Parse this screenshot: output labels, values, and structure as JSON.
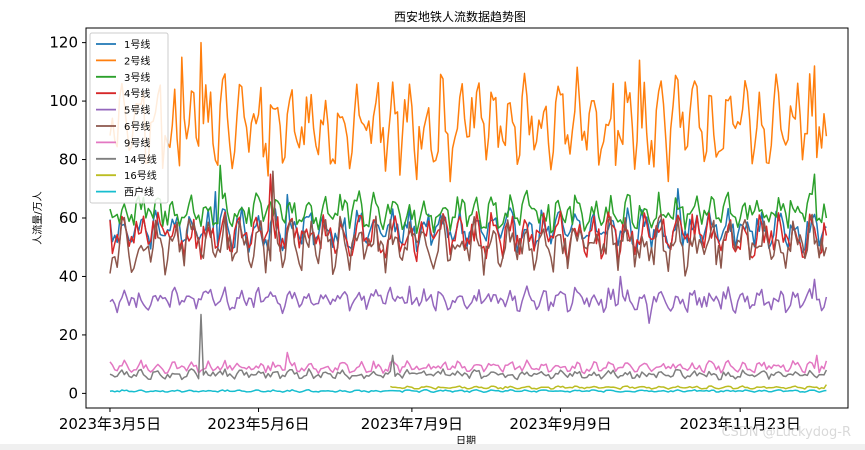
{
  "chart_data": {
    "type": "line",
    "title": "西安地铁人流数据趋势图",
    "xlabel": "日期",
    "ylabel": "人流量/万人",
    "x_start": "2023-03-05",
    "x_end": "2023-12-29",
    "xlim": [
      "2023-02-23",
      "2024-01-07"
    ],
    "ylim": [
      -5,
      125
    ],
    "yticks": [
      0,
      20,
      40,
      60,
      80,
      100,
      120
    ],
    "xticks": [
      {
        "date": "2023-03-05",
        "label": "2023年3月5日"
      },
      {
        "date": "2023-05-06",
        "label": "2023年5月6日"
      },
      {
        "date": "2023-07-09",
        "label": "2023年7月9日"
      },
      {
        "date": "2023-09-09",
        "label": "2023年9月9日"
      },
      {
        "date": "2023-11-23",
        "label": "2023年11月23日"
      }
    ],
    "grid": false,
    "legend_position": "top-left",
    "series": [
      {
        "name": "1号线",
        "color": "#1f77b4",
        "base": 56,
        "amp": 4,
        "noise": 4,
        "start": "2023-03-05",
        "points": [
          {
            "x": "2023-04-18",
            "y": 69
          },
          {
            "x": "2023-05-18",
            "y": 68
          },
          {
            "x": "2023-10-28",
            "y": 70
          }
        ]
      },
      {
        "name": "2号线",
        "color": "#ff7f0e",
        "base": 92,
        "amp": 10,
        "noise": 10,
        "start": "2023-03-05",
        "points": [
          {
            "x": "2023-04-12",
            "y": 120
          },
          {
            "x": "2023-04-04",
            "y": 115
          },
          {
            "x": "2023-03-27",
            "y": 77
          },
          {
            "x": "2023-10-12",
            "y": 114
          },
          {
            "x": "2023-12-24",
            "y": 112
          },
          {
            "x": "2023-12-29",
            "y": 88
          }
        ]
      },
      {
        "name": "3号线",
        "color": "#2ca02c",
        "base": 62,
        "amp": 3,
        "noise": 4.5,
        "start": "2023-03-05",
        "points": [
          {
            "x": "2023-04-20",
            "y": 78
          },
          {
            "x": "2023-12-24",
            "y": 75
          },
          {
            "x": "2023-12-29",
            "y": 60
          }
        ]
      },
      {
        "name": "4号线",
        "color": "#d62728",
        "base": 54,
        "amp": 4,
        "noise": 5,
        "start": "2023-03-05",
        "points": [
          {
            "x": "2023-05-11",
            "y": 75
          },
          {
            "x": "2023-12-29",
            "y": 54
          }
        ]
      },
      {
        "name": "5号线",
        "color": "#9467bd",
        "base": 32,
        "amp": 2,
        "noise": 2.8,
        "start": "2023-03-05",
        "points": [
          {
            "x": "2023-10-04",
            "y": 40
          },
          {
            "x": "2023-12-24",
            "y": 39
          },
          {
            "x": "2023-10-16",
            "y": 24
          }
        ]
      },
      {
        "name": "6号线",
        "color": "#8c564b",
        "base": 51,
        "amp": 5,
        "noise": 6,
        "start": "2023-03-05",
        "points": [
          {
            "x": "2023-05-12",
            "y": 76
          },
          {
            "x": "2023-03-05",
            "y": 41
          },
          {
            "x": "2023-12-29",
            "y": 50
          }
        ]
      },
      {
        "name": "9号线",
        "color": "#e377c2",
        "base": 9,
        "amp": 1,
        "noise": 1.4,
        "start": "2023-03-05",
        "points": [
          {
            "x": "2023-05-18",
            "y": 14
          },
          {
            "x": "2023-12-25",
            "y": 13
          }
        ]
      },
      {
        "name": "14号线",
        "color": "#7f7f7f",
        "base": 6.5,
        "amp": 0.8,
        "noise": 1.1,
        "start": "2023-03-05",
        "points": [
          {
            "x": "2023-04-12",
            "y": 27
          },
          {
            "x": "2023-07-01",
            "y": 13
          },
          {
            "x": "2023-12-29",
            "y": 8
          }
        ]
      },
      {
        "name": "16号线",
        "color": "#bcbd22",
        "base": 2,
        "amp": 0.3,
        "noise": 0.3,
        "start": "2023-06-30",
        "points": [
          {
            "x": "2023-12-29",
            "y": 3
          }
        ]
      },
      {
        "name": "西户线",
        "color": "#17becf",
        "base": 0.8,
        "amp": 0.2,
        "noise": 0.25,
        "start": "2023-03-05",
        "points": [
          {
            "x": "2023-12-29",
            "y": 1
          }
        ]
      }
    ]
  },
  "watermark": "CSDN @Luckydog-R"
}
